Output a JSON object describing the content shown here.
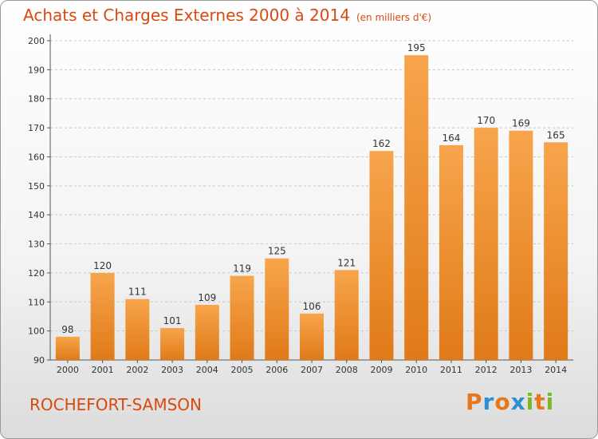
{
  "header": {
    "title": "Achats et Charges Externes 2000 à 2014",
    "subtitle": "(en milliers d'€)"
  },
  "footer": {
    "place": "ROCHEFORT-SAMSON",
    "logo_letters": [
      "P",
      "r",
      "o",
      "x",
      "i",
      "t",
      "i"
    ]
  },
  "colors": {
    "title": "#d84a10",
    "bar_top": "#f7a54c",
    "bar_bottom": "#e07a18",
    "logo": [
      "#e8761a",
      "#2a8fd3",
      "#e8761a",
      "#2a8fd3",
      "#7ab82a",
      "#e8761a",
      "#7ab82a"
    ]
  },
  "chart_data": {
    "type": "bar",
    "title": "Achats et Charges Externes 2000 à 2014",
    "subtitle": "(en milliers d'€)",
    "categories": [
      "2000",
      "2001",
      "2002",
      "2003",
      "2004",
      "2005",
      "2006",
      "2007",
      "2008",
      "2009",
      "2010",
      "2011",
      "2012",
      "2013",
      "2014"
    ],
    "values": [
      98,
      120,
      111,
      101,
      109,
      119,
      125,
      106,
      121,
      162,
      195,
      164,
      170,
      169,
      165
    ],
    "ylim": [
      90,
      200
    ],
    "yticks": [
      90,
      100,
      110,
      120,
      130,
      140,
      150,
      160,
      170,
      180,
      190,
      200
    ],
    "grid": "horizontal dashed",
    "data_labels": true
  }
}
